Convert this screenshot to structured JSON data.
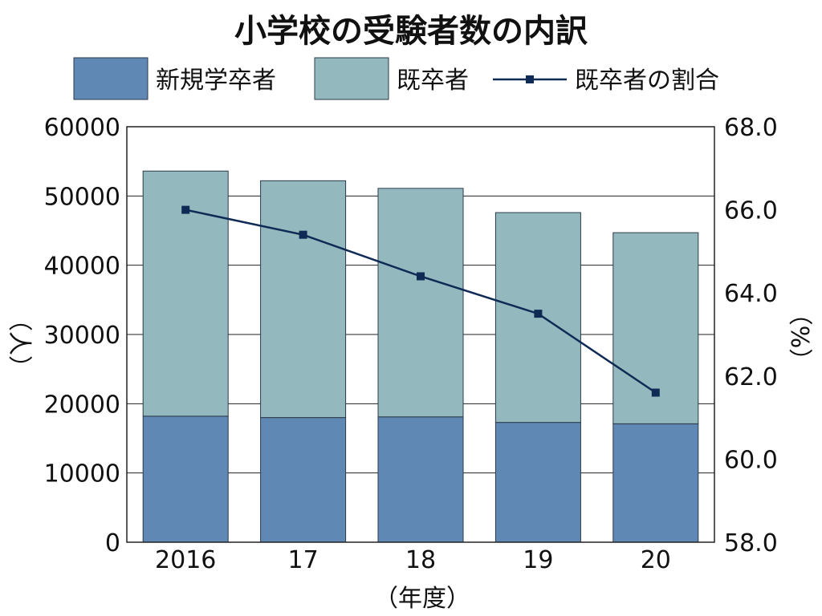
{
  "chart_data": {
    "type": "bar",
    "stacked": true,
    "title": "小学校の受験者数の内訳",
    "categories": [
      "2016",
      "17",
      "18",
      "19",
      "20"
    ],
    "series": [
      {
        "name": "新規学卒者",
        "kind": "bar",
        "axis": "left",
        "color": "#5f88b4",
        "values": [
          18200,
          18000,
          18100,
          17300,
          17100
        ]
      },
      {
        "name": "既卒者",
        "kind": "bar",
        "axis": "left",
        "color": "#93b9bf",
        "values": [
          35400,
          34200,
          33000,
          30300,
          27600
        ]
      },
      {
        "name": "既卒者の割合",
        "kind": "line",
        "axis": "right",
        "color": "#0f2a55",
        "values": [
          66.0,
          65.4,
          64.4,
          63.5,
          61.6
        ]
      }
    ],
    "xlabel": "（年度）",
    "ylabel": "（人）",
    "y2label": "（%）",
    "ylim": [
      0,
      60000
    ],
    "y2lim": [
      58.0,
      68.0
    ],
    "yticks": [
      "0",
      "10000",
      "20000",
      "30000",
      "40000",
      "50000",
      "60000"
    ],
    "y2ticks": [
      "58.0",
      "60.0",
      "62.0",
      "64.0",
      "66.0",
      "68.0"
    ],
    "grid": true,
    "legend_position": "top"
  }
}
